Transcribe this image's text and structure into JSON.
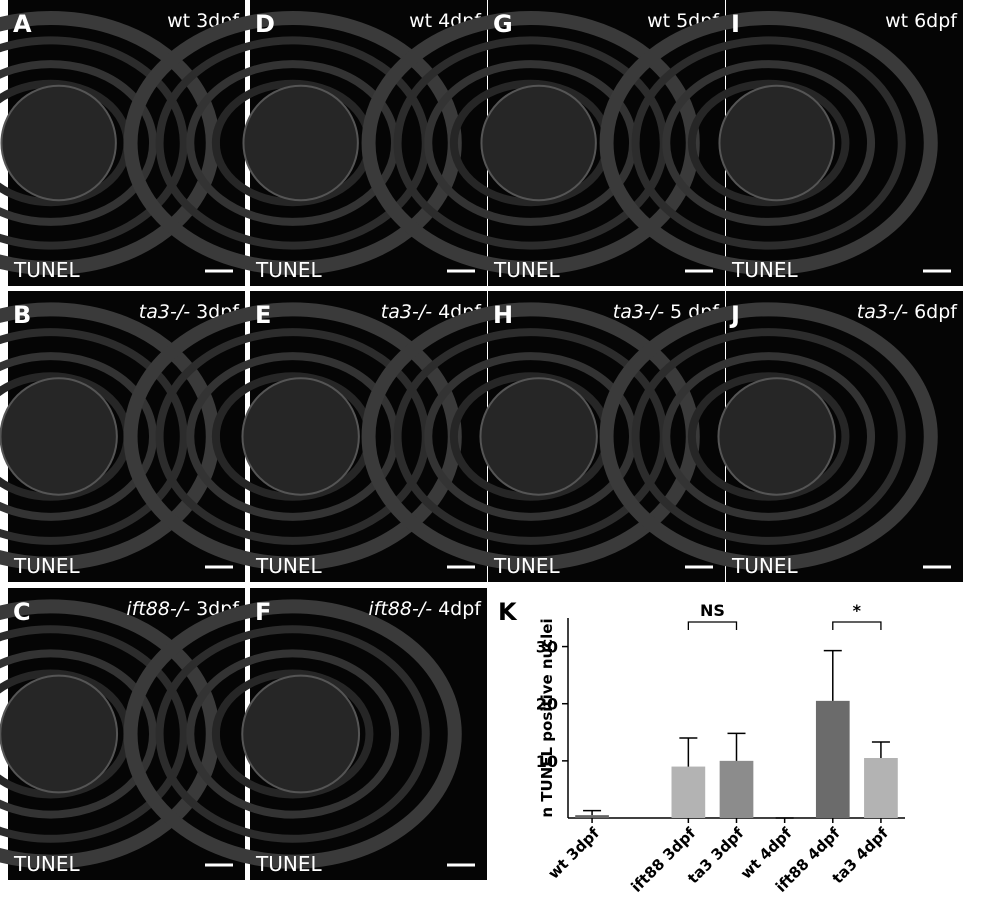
{
  "panels": [
    {
      "letter": "A",
      "genotype": "wt",
      "italic": false,
      "stage": "3dpf",
      "stain": "TUNEL"
    },
    {
      "letter": "D",
      "genotype": "wt",
      "italic": false,
      "stage": "4dpf",
      "stain": "TUNEL"
    },
    {
      "letter": "G",
      "genotype": "wt",
      "italic": false,
      "stage": "5dpf",
      "stain": "TUNEL"
    },
    {
      "letter": "I",
      "genotype": "wt",
      "italic": false,
      "stage": "6dpf",
      "stain": "TUNEL"
    },
    {
      "letter": "B",
      "genotype": "ta3-/-",
      "italic": true,
      "stage": "3dpf",
      "stain": "TUNEL"
    },
    {
      "letter": "E",
      "genotype": "ta3-/-",
      "italic": true,
      "stage": "4dpf",
      "stain": "TUNEL"
    },
    {
      "letter": "H",
      "genotype": "ta3-/-",
      "italic": true,
      "stage": "5 dpf",
      "stain": "TUNEL"
    },
    {
      "letter": "J",
      "genotype": "ta3-/-",
      "italic": true,
      "stage": "6dpf",
      "stain": "TUNEL"
    },
    {
      "letter": "C",
      "genotype": "ift88-/-",
      "italic": true,
      "stage": "3dpf",
      "stain": "TUNEL"
    },
    {
      "letter": "F",
      "genotype": "ift88-/-",
      "italic": true,
      "stage": "4dpf",
      "stain": "TUNEL"
    }
  ],
  "chart_data": {
    "type": "bar",
    "panel_letter": "K",
    "ylabel": "n TUNEL positive nuclei",
    "categories": [
      "wt 3dpf",
      "ift88 3dpf",
      "ta3 3dpf",
      "wt 4dpf",
      "ift88 4dpf",
      "ta3 4dpf"
    ],
    "values": [
      0.5,
      9,
      10,
      0,
      20.5,
      10.5
    ],
    "errors": [
      0.8,
      5,
      4.8,
      0,
      8.8,
      2.8
    ],
    "colors": [
      "#666666",
      "#b3b3b3",
      "#8c8c8c",
      "#666666",
      "#6b6b6b",
      "#b3b3b3"
    ],
    "ylim": [
      0,
      35
    ],
    "yticks": [
      10,
      20,
      30
    ],
    "annotations": [
      {
        "text": "NS",
        "from": 1,
        "to": 2
      },
      {
        "text": "*",
        "from": 4,
        "to": 5
      }
    ]
  }
}
